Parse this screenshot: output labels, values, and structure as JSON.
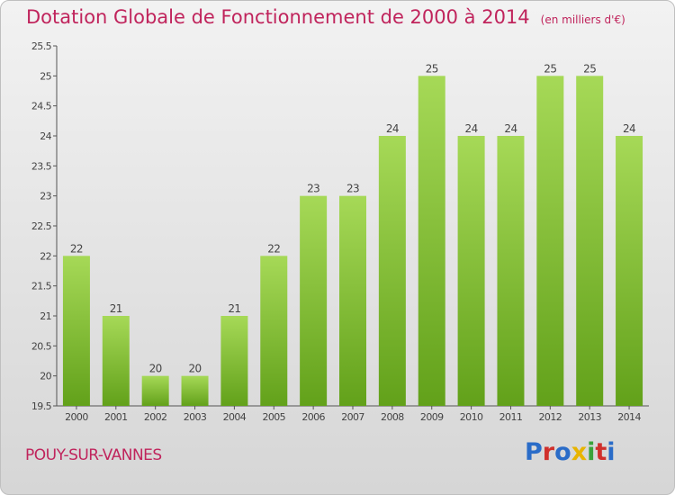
{
  "title": "Dotation Globale de Fonctionnement de 2000 à 2014",
  "subtitle": "(en milliers d'€)",
  "commune": "POUY-SUR-VANNES",
  "logo": {
    "letters": [
      "P",
      "r",
      "o",
      "x",
      "i",
      "t",
      "i"
    ],
    "colors": [
      "#2a6cc8",
      "#d0302c",
      "#2a6cc8",
      "#e8b400",
      "#3aa33a",
      "#d0302c",
      "#2a6cc8"
    ]
  },
  "colors": {
    "bar_light": "#a6d957",
    "bar_dark": "#62a11a",
    "title": "#c0245c"
  },
  "chart_data": {
    "type": "bar",
    "categories": [
      "2000",
      "2001",
      "2002",
      "2003",
      "2004",
      "2005",
      "2006",
      "2007",
      "2008",
      "2009",
      "2010",
      "2011",
      "2012",
      "2013",
      "2014"
    ],
    "values": [
      22,
      21,
      20,
      20,
      21,
      22,
      23,
      23,
      24,
      25,
      24,
      24,
      25,
      25,
      24
    ],
    "value_labels": [
      "22",
      "21",
      "20",
      "20",
      "21",
      "22",
      "23",
      "23",
      "24",
      "25",
      "24",
      "24",
      "25",
      "25",
      "24"
    ],
    "yticks": [
      "19.5",
      "20",
      "20.5",
      "21",
      "21.5",
      "22",
      "22.5",
      "23",
      "23.5",
      "24",
      "24.5",
      "25",
      "25.5"
    ],
    "ylim": [
      19.5,
      25.5
    ],
    "grid": false,
    "title": "Dotation Globale de Fonctionnement de 2000 à 2014"
  }
}
